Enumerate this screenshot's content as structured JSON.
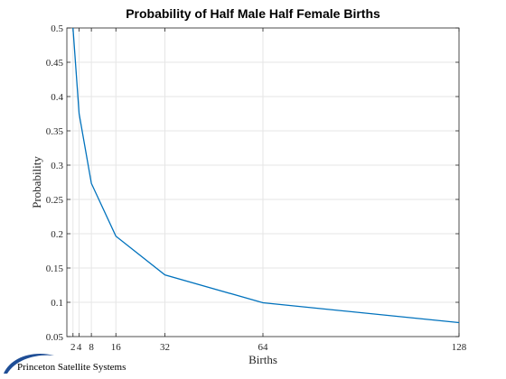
{
  "chart_data": {
    "type": "line",
    "title": "Probability of Half Male Half Female Births",
    "xlabel": "Births",
    "ylabel": "Probability",
    "x": [
      2,
      4,
      8,
      16,
      32,
      64,
      128
    ],
    "series": [
      {
        "values": [
          0.5,
          0.375,
          0.2734,
          0.1964,
          0.14,
          0.0993,
          0.0704
        ],
        "color": "#0072BD"
      }
    ],
    "xticks": [
      2,
      4,
      8,
      16,
      32,
      64,
      128
    ],
    "xtick_labels": [
      "2",
      "4",
      "8",
      "16",
      "32",
      "64",
      "128"
    ],
    "yticks": [
      0.05,
      0.1,
      0.15,
      0.2,
      0.25,
      0.3,
      0.35,
      0.4,
      0.45,
      0.5
    ],
    "ytick_labels": [
      "0.05",
      "0.1",
      "0.15",
      "0.2",
      "0.25",
      "0.3",
      "0.35",
      "0.4",
      "0.45",
      "0.5"
    ],
    "xlim": [
      0,
      128
    ],
    "ylim": [
      0.05,
      0.5
    ],
    "grid": true,
    "legend": "none"
  },
  "logo": {
    "text": "Princeton Satellite Systems",
    "icon": "swoosh-logo-icon",
    "color": "#1f4e96"
  }
}
